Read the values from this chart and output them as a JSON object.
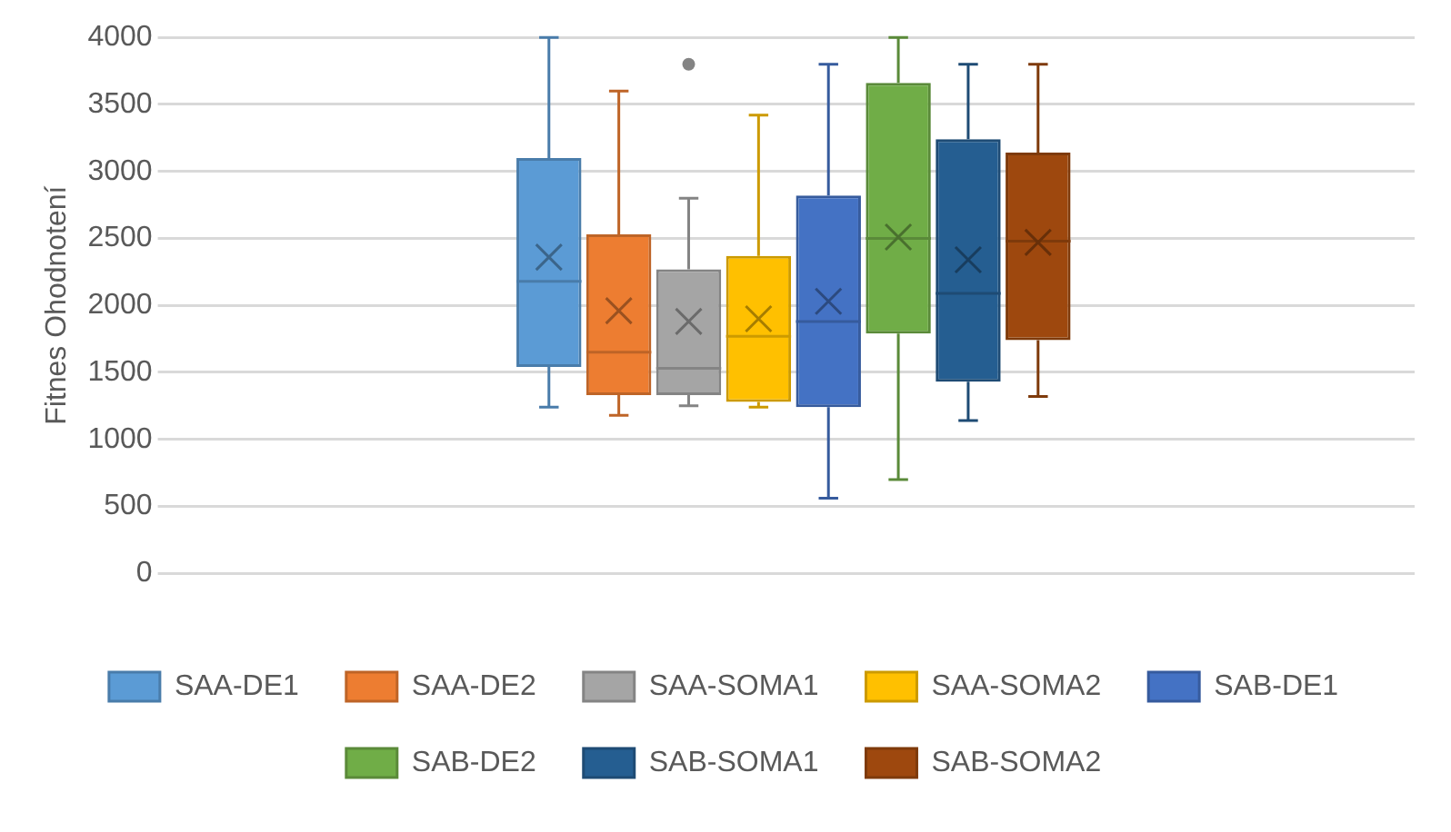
{
  "chart_data": {
    "type": "box",
    "ylabel": "Fitnes Ohodnotení",
    "categories": [
      null
    ],
    "ylim": [
      0,
      4000
    ],
    "yticks": [
      0,
      500,
      1000,
      1500,
      2000,
      2500,
      3000,
      3500,
      4000
    ],
    "grid": "y",
    "legend": "bottom",
    "series": [
      {
        "name": "SAA-DE1",
        "color": "#5b9bd5",
        "boxes": [
          {
            "low": 1240,
            "q1": 1540,
            "median": 2180,
            "q3": 3100,
            "high": 4000,
            "mean": 2360
          }
        ]
      },
      {
        "name": "SAA-DE2",
        "color": "#ed7d31",
        "boxes": [
          {
            "low": 1180,
            "q1": 1330,
            "median": 1650,
            "q3": 2530,
            "high": 3600,
            "mean": 1960
          }
        ]
      },
      {
        "name": "SAA-SOMA1",
        "color": "#a5a5a5",
        "boxes": [
          {
            "low": 1250,
            "q1": 1330,
            "median": 1530,
            "q3": 2270,
            "high": 2800,
            "mean": 1880,
            "outliers": [
              3800
            ]
          }
        ]
      },
      {
        "name": "SAA-SOMA2",
        "color": "#ffc000",
        "boxes": [
          {
            "low": 1240,
            "q1": 1280,
            "median": 1770,
            "q3": 2370,
            "high": 3420,
            "mean": 1900
          }
        ]
      },
      {
        "name": "SAB-DE1",
        "color": "#4472c4",
        "boxes": [
          {
            "low": 560,
            "q1": 1240,
            "median": 1880,
            "q3": 2820,
            "high": 3800,
            "mean": 2030
          }
        ]
      },
      {
        "name": "SAB-DE2",
        "color": "#70ad47",
        "boxes": [
          {
            "low": 700,
            "q1": 1790,
            "median": 2500,
            "q3": 3660,
            "high": 4000,
            "mean": 2510
          }
        ]
      },
      {
        "name": "SAB-SOMA1",
        "color": "#255e91",
        "boxes": [
          {
            "low": 1140,
            "q1": 1430,
            "median": 2090,
            "q3": 3240,
            "high": 3800,
            "mean": 2340
          }
        ]
      },
      {
        "name": "SAB-SOMA2",
        "color": "#9e480e",
        "boxes": [
          {
            "low": 1320,
            "q1": 1740,
            "median": 2480,
            "q3": 3140,
            "high": 3800,
            "mean": 2470
          }
        ]
      }
    ]
  }
}
